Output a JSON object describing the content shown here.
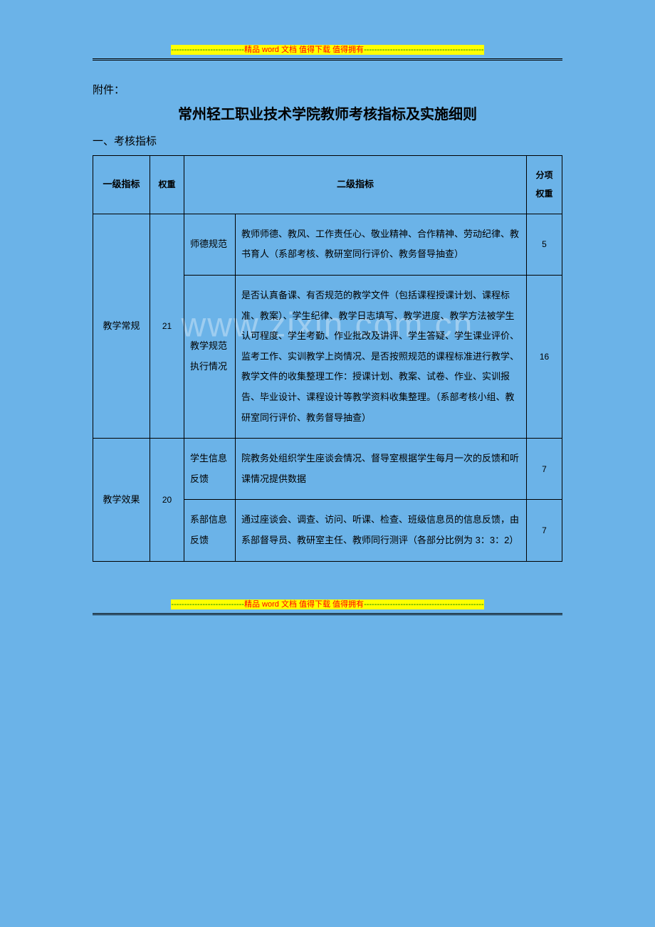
{
  "banner": {
    "dash_left": "----------------------------",
    "text": "精品 word 文档  值得下载  值得拥有",
    "dash_right": "----------------------------------------------"
  },
  "watermark": "www.zixin.com.cn",
  "attachment_label": "附件：",
  "doc_title": "常州轻工职业技术学院教师考核指标及实施细则",
  "section_heading": "一、考核指标",
  "table": {
    "headers": {
      "level1": "一级指标",
      "weight": "权重",
      "level2": "二级指标",
      "sub_weight_line1": "分项",
      "sub_weight_line2": "权重"
    },
    "groups": [
      {
        "level1": "教学常规",
        "weight": "21",
        "items": [
          {
            "name": "师德规范",
            "desc": "教师师德、教风、工作责任心、敬业精神、合作精神、劳动纪律、教书育人（系部考核、教研室同行评价、教务督导抽查）",
            "sub_weight": "5"
          },
          {
            "name": "教学规范执行情况",
            "desc": "是否认真备课、有否规范的教学文件（包括课程授课计划、课程标准、教案）、学生纪律、教学日志填写、教学进度、教学方法被学生认可程度、学生考勤、作业批改及讲评、学生答疑、学生课业评价、监考工作、实训教学上岗情况、是否按照规范的课程标准进行教学、教学文件的收集整理工作：授课计划、教案、试卷、作业、实训报告、毕业设计、课程设计等教学资料收集整理。（系部考核小组、教研室同行评价、教务督导抽查）",
            "sub_weight": "16"
          }
        ]
      },
      {
        "level1": "教学效果",
        "weight": "20",
        "items": [
          {
            "name": "学生信息反馈",
            "desc": "院教务处组织学生座谈会情况、督导室根据学生每月一次的反馈和听课情况提供数据",
            "sub_weight": "7"
          },
          {
            "name": "系部信息反馈",
            "desc": "通过座谈会、调查、访问、听课、检查、班级信息员的信息反馈，由系部督导员、教研室主任、教师同行测评（各部分比例为 3：3：2）",
            "sub_weight": "7"
          }
        ]
      }
    ]
  },
  "colors": {
    "page_bg": "#6bb3e8",
    "highlight_bg": "#ffff00",
    "red": "#ff0000",
    "green_dash": "#008000",
    "watermark": "rgba(255,255,255,0.35)",
    "border": "#000000"
  }
}
